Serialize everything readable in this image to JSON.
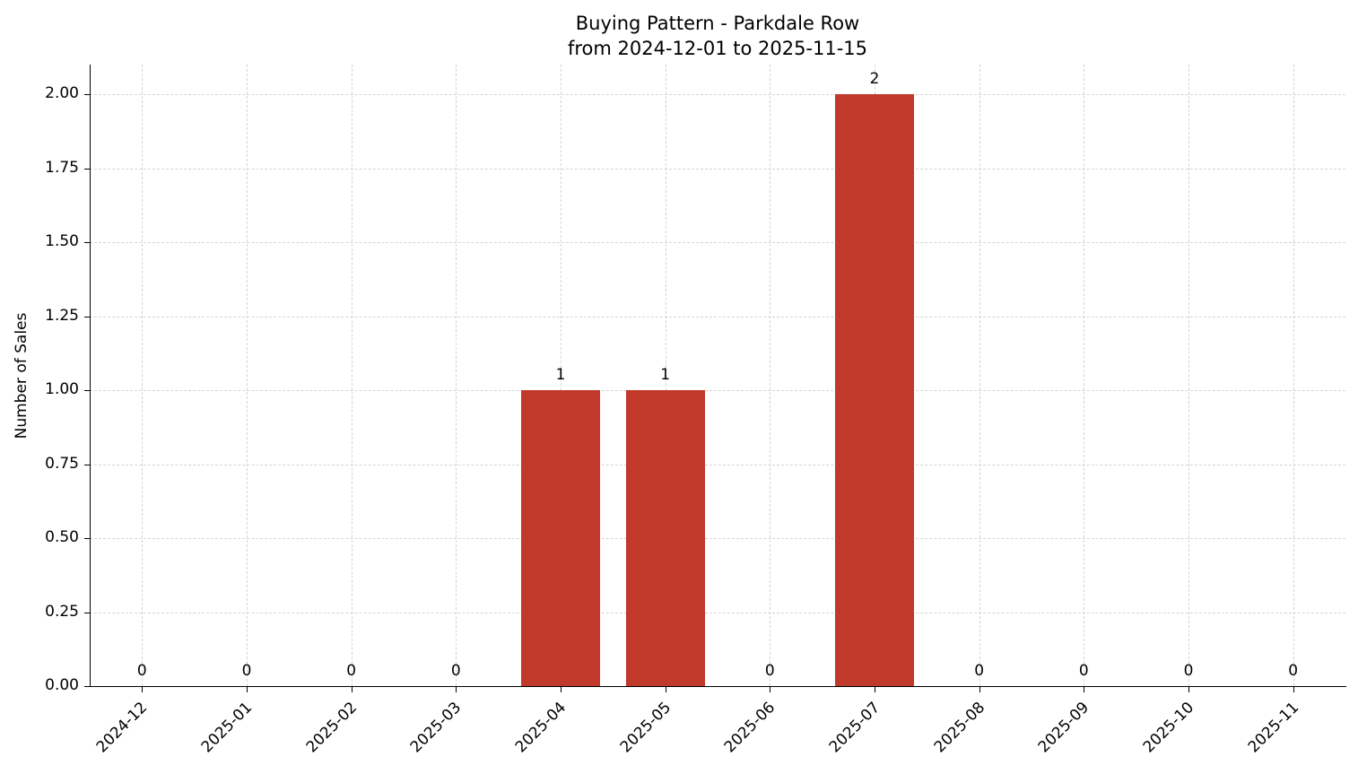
{
  "title": "Buying Pattern - Parkdale Row",
  "subtitle": "from 2024-12-01 to 2025-11-15",
  "chart_data": {
    "type": "bar",
    "title": "Buying Pattern - Parkdale Row",
    "subtitle": "from 2024-12-01 to 2025-11-15",
    "categories": [
      "2024-12",
      "2025-01",
      "2025-02",
      "2025-03",
      "2025-04",
      "2025-05",
      "2025-06",
      "2025-07",
      "2025-08",
      "2025-09",
      "2025-10",
      "2025-11"
    ],
    "values": [
      0,
      0,
      0,
      0,
      1,
      1,
      0,
      2,
      0,
      0,
      0,
      0
    ],
    "data_labels": [
      "0",
      "0",
      "0",
      "0",
      "1",
      "1",
      "0",
      "2",
      "0",
      "0",
      "0",
      "0"
    ],
    "xlabel": "",
    "ylabel": "Number of Sales",
    "ylim": [
      0,
      2.1
    ],
    "yticks": [
      0.0,
      0.25,
      0.5,
      0.75,
      1.0,
      1.25,
      1.5,
      1.75,
      2.0
    ],
    "ytick_labels": [
      "0.00",
      "0.25",
      "0.50",
      "0.75",
      "1.00",
      "1.25",
      "1.50",
      "1.75",
      "2.00"
    ],
    "bar_color": "#c0392b",
    "grid": true,
    "grid_style": "dashed",
    "legend": "none"
  }
}
